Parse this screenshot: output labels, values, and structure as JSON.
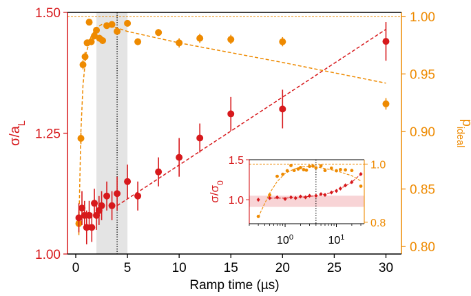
{
  "colors": {
    "red": "#d7191c",
    "orange": "#ee8a00",
    "shade": "#e4e4e4",
    "inset_band": "#f8d4d6"
  },
  "chart_data": [
    {
      "type": "scatter",
      "xlabel": "Ramp time (µs)",
      "ylabel_left": {
        "main": "σ/a",
        "sub": "L"
      },
      "ylabel_right": {
        "main": "p",
        "sub": "ideal"
      },
      "xlim": [
        -0.8,
        31.5
      ],
      "ylim_left": [
        1.0,
        1.5
      ],
      "ylim_right": [
        0.7935,
        1.0035
      ],
      "xticks": [
        0,
        5,
        10,
        15,
        20,
        25,
        30
      ],
      "yticks_left": [
        1.0,
        1.25,
        1.5
      ],
      "yticks_right": [
        0.8,
        0.85,
        0.9,
        0.95,
        1.0
      ],
      "xtick_labels": [
        "0",
        "5",
        "10",
        "15",
        "20",
        "25",
        "30"
      ],
      "ytick_labels_left": [
        "1.00",
        "1.25",
        "1.50"
      ],
      "ytick_labels_right": [
        "0.80",
        "0.85",
        "0.90",
        "0.95",
        "1.00"
      ],
      "shaded_region": [
        2.0,
        5.0
      ],
      "vline": 4.0,
      "hline_right": 1.0,
      "series": [
        {
          "axis": "left",
          "color": "red",
          "points": [
            {
              "x": 0.3,
              "y": 1.075,
              "err": 0.03
            },
            {
              "x": 0.6,
              "y": 1.095,
              "err": 0.035
            },
            {
              "x": 0.85,
              "y": 1.08,
              "err": 0.03
            },
            {
              "x": 1.05,
              "y": 1.055,
              "err": 0.035
            },
            {
              "x": 1.3,
              "y": 1.08,
              "err": 0.03
            },
            {
              "x": 1.55,
              "y": 1.055,
              "err": 0.03
            },
            {
              "x": 1.8,
              "y": 1.105,
              "err": 0.03
            },
            {
              "x": 2.0,
              "y": 1.08,
              "err": 0.03
            },
            {
              "x": 2.25,
              "y": 1.09,
              "err": 0.03
            },
            {
              "x": 2.5,
              "y": 1.1,
              "err": 0.03
            },
            {
              "x": 3.0,
              "y": 1.12,
              "err": 0.03
            },
            {
              "x": 3.5,
              "y": 1.1,
              "err": 0.03
            },
            {
              "x": 4.0,
              "y": 1.125,
              "err": 0.035
            },
            {
              "x": 5.0,
              "y": 1.15,
              "err": 0.035
            },
            {
              "x": 6.0,
              "y": 1.12,
              "err": 0.03
            },
            {
              "x": 8.0,
              "y": 1.17,
              "err": 0.03
            },
            {
              "x": 10.0,
              "y": 1.2,
              "err": 0.04
            },
            {
              "x": 12.0,
              "y": 1.24,
              "err": 0.03
            },
            {
              "x": 15.0,
              "y": 1.29,
              "err": 0.035
            },
            {
              "x": 20.0,
              "y": 1.3,
              "err": 0.04
            },
            {
              "x": 30.0,
              "y": 1.44,
              "err": 0.04
            }
          ],
          "fit": [
            [
              4.0,
              1.1
            ],
            [
              30.0,
              1.465
            ]
          ]
        },
        {
          "axis": "right",
          "color": "orange",
          "points": [
            {
              "x": 0.3,
              "y": 0.82,
              "err": 0.01
            },
            {
              "x": 0.5,
              "y": 0.894,
              "err": 0.005
            },
            {
              "x": 0.7,
              "y": 0.958,
              "err": 0.004
            },
            {
              "x": 0.9,
              "y": 0.965,
              "err": 0.004
            },
            {
              "x": 1.1,
              "y": 0.977,
              "err": 0.003
            },
            {
              "x": 1.3,
              "y": 0.995,
              "err": 0.002
            },
            {
              "x": 1.5,
              "y": 0.978,
              "err": 0.003
            },
            {
              "x": 1.8,
              "y": 0.983,
              "err": 0.003
            },
            {
              "x": 2.0,
              "y": 0.988,
              "err": 0.003
            },
            {
              "x": 2.3,
              "y": 0.981,
              "err": 0.003
            },
            {
              "x": 2.6,
              "y": 0.979,
              "err": 0.003
            },
            {
              "x": 3.0,
              "y": 0.992,
              "err": 0.002
            },
            {
              "x": 3.5,
              "y": 0.993,
              "err": 0.002
            },
            {
              "x": 4.0,
              "y": 0.987,
              "err": 0.003
            },
            {
              "x": 5.0,
              "y": 0.994,
              "err": 0.002
            },
            {
              "x": 6.0,
              "y": 0.978,
              "err": 0.003
            },
            {
              "x": 8.0,
              "y": 0.986,
              "err": 0.003
            },
            {
              "x": 10.0,
              "y": 0.977,
              "err": 0.004
            },
            {
              "x": 12.0,
              "y": 0.981,
              "err": 0.004
            },
            {
              "x": 15.0,
              "y": 0.98,
              "err": 0.004
            },
            {
              "x": 20.0,
              "y": 0.978,
              "err": 0.004
            },
            {
              "x": 30.0,
              "y": 0.924,
              "err": 0.005
            }
          ],
          "fit": [
            [
              0.3,
              0.818
            ],
            [
              0.5,
              0.9
            ],
            [
              0.7,
              0.94
            ],
            [
              1.0,
              0.968
            ],
            [
              1.5,
              0.983
            ],
            [
              2.0,
              0.99
            ],
            [
              2.5,
              0.993
            ],
            [
              3.0,
              0.993
            ],
            [
              4.0,
              0.99
            ],
            [
              5.0,
              0.987
            ],
            [
              10.0,
              0.977
            ],
            [
              20.0,
              0.96
            ],
            [
              30.0,
              0.942
            ]
          ]
        }
      ]
    },
    {
      "type": "scatter",
      "inset": true,
      "xscale": "log",
      "ylabel_left": {
        "main": "σ/σ",
        "sub": "0"
      },
      "xlim": [
        0.2,
        35.0
      ],
      "ylim_left": [
        0.7,
        1.5
      ],
      "ylim_right": [
        0.795,
        1.015
      ],
      "xticks": [
        1,
        10
      ],
      "xtick_labels": [
        {
          "base": "10",
          "exp": "0"
        },
        {
          "base": "10",
          "exp": "1"
        }
      ],
      "yticks_left": [
        1.0,
        1.5
      ],
      "ytick_labels_left": [
        "1.0",
        "1.5"
      ],
      "yticks_right": [
        0.8,
        1.0
      ],
      "ytick_labels_right": [
        "0.8",
        "1.0"
      ],
      "band_left": [
        0.91,
        1.05
      ],
      "vline": 4.0,
      "hline_right": 1.0,
      "series": [
        {
          "axis": "left",
          "color": "red",
          "points": [
            {
              "x": 0.3,
              "y": 1.0
            },
            {
              "x": 0.5,
              "y": 1.02
            },
            {
              "x": 0.7,
              "y": 1.03
            },
            {
              "x": 1.0,
              "y": 1.01
            },
            {
              "x": 1.3,
              "y": 1.03
            },
            {
              "x": 1.6,
              "y": 1.02
            },
            {
              "x": 2.0,
              "y": 1.04
            },
            {
              "x": 2.5,
              "y": 1.03
            },
            {
              "x": 3.0,
              "y": 1.05
            },
            {
              "x": 4.0,
              "y": 1.05
            },
            {
              "x": 5.0,
              "y": 1.07
            },
            {
              "x": 6.0,
              "y": 1.06
            },
            {
              "x": 8.0,
              "y": 1.09
            },
            {
              "x": 10.0,
              "y": 1.11
            },
            {
              "x": 12.0,
              "y": 1.14
            },
            {
              "x": 15.0,
              "y": 1.18
            },
            {
              "x": 20.0,
              "y": 1.22
            },
            {
              "x": 30.0,
              "y": 1.32
            }
          ],
          "fit": [
            [
              0.5,
              1.02
            ],
            [
              1.0,
              1.02
            ],
            [
              2.0,
              1.03
            ],
            [
              4.0,
              1.05
            ],
            [
              6.0,
              1.07
            ],
            [
              8.0,
              1.09
            ],
            [
              10.0,
              1.12
            ],
            [
              15.0,
              1.17
            ],
            [
              20.0,
              1.22
            ],
            [
              30.0,
              1.32
            ]
          ]
        },
        {
          "axis": "right",
          "color": "orange",
          "points": [
            {
              "x": 0.3,
              "y": 0.82
            },
            {
              "x": 0.5,
              "y": 0.894
            },
            {
              "x": 0.7,
              "y": 0.958
            },
            {
              "x": 0.9,
              "y": 0.965
            },
            {
              "x": 1.1,
              "y": 0.977
            },
            {
              "x": 1.3,
              "y": 0.995
            },
            {
              "x": 1.5,
              "y": 0.978
            },
            {
              "x": 1.8,
              "y": 0.983
            },
            {
              "x": 2.0,
              "y": 0.988
            },
            {
              "x": 2.3,
              "y": 0.981
            },
            {
              "x": 2.6,
              "y": 0.979
            },
            {
              "x": 3.0,
              "y": 0.992
            },
            {
              "x": 3.5,
              "y": 0.993
            },
            {
              "x": 4.0,
              "y": 0.987
            },
            {
              "x": 5.0,
              "y": 0.994
            },
            {
              "x": 6.0,
              "y": 0.978
            },
            {
              "x": 8.0,
              "y": 0.986
            },
            {
              "x": 10.0,
              "y": 0.977
            },
            {
              "x": 12.0,
              "y": 0.981
            },
            {
              "x": 15.0,
              "y": 0.98
            },
            {
              "x": 20.0,
              "y": 0.978
            },
            {
              "x": 30.0,
              "y": 0.924
            }
          ],
          "fit": [
            [
              0.3,
              0.818
            ],
            [
              0.5,
              0.9
            ],
            [
              0.7,
              0.94
            ],
            [
              1.0,
              0.968
            ],
            [
              1.5,
              0.983
            ],
            [
              2.0,
              0.99
            ],
            [
              3.0,
              0.993
            ],
            [
              4.0,
              0.99
            ],
            [
              5.0,
              0.987
            ],
            [
              10.0,
              0.977
            ],
            [
              20.0,
              0.96
            ],
            [
              30.0,
              0.942
            ]
          ]
        }
      ]
    }
  ]
}
